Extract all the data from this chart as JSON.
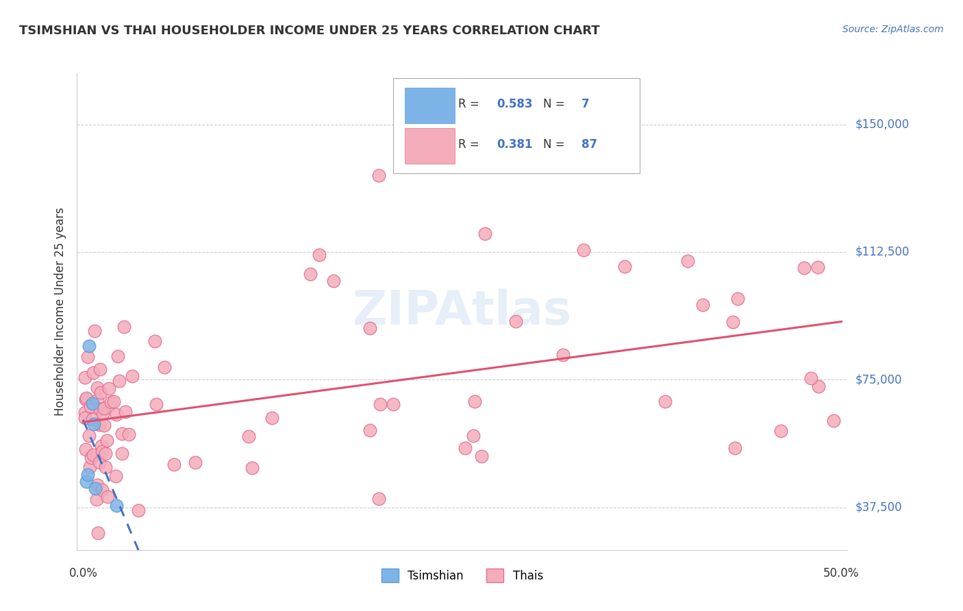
{
  "title": "TSIMSHIAN VS THAI HOUSEHOLDER INCOME UNDER 25 YEARS CORRELATION CHART",
  "source": "Source: ZipAtlas.com",
  "ylabel": "Householder Income Under 25 years",
  "watermark": "ZIPAtlas",
  "xlim": [
    0.0,
    0.5
  ],
  "ylim": [
    25000,
    162000
  ],
  "yticks": [
    37500,
    75000,
    112500,
    150000
  ],
  "ytick_labels": [
    "$37,500",
    "$75,000",
    "$112,500",
    "$150,000"
  ],
  "title_color": "#333333",
  "source_color": "#4472c4",
  "tsimshian_color": "#7EB3E8",
  "tsimshian_edge": "#5B9BD5",
  "thai_color": "#F4ACBB",
  "thai_edge": "#E07090",
  "tsimshian_line_color": "#4472c4",
  "thai_line_color": "#E05070",
  "tsimshian_R": 0.583,
  "tsimshian_N": 7,
  "thai_R": 0.381,
  "thai_N": 87,
  "legend_color": "#4472c4"
}
